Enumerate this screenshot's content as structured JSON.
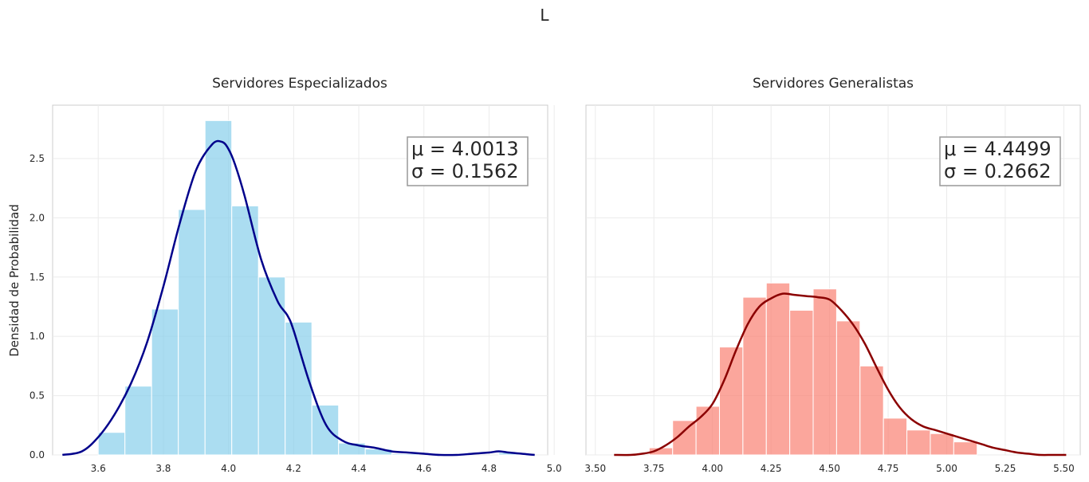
{
  "figure": {
    "suptitle": "L"
  },
  "ylabel": "Densidad de Probabilidad",
  "chart_data": [
    {
      "type": "bar",
      "title": "Servidores Especializados",
      "xlabel": "",
      "ylabel": "Densidad de Probabilidad",
      "xlim": [
        3.46,
        4.98
      ],
      "ylim": [
        0,
        2.95
      ],
      "xticks": [
        "3.6",
        "3.8",
        "4.0",
        "4.2",
        "4.4",
        "4.6",
        "4.8",
        "5.0"
      ],
      "yticks": [
        "0.0",
        "0.5",
        "1.0",
        "1.5",
        "2.0",
        "2.5"
      ],
      "grid": true,
      "colors": {
        "bars": "#87ceeb",
        "kde": "#00008b"
      },
      "stats": {
        "mu": "μ = 4.0013",
        "sigma": "σ = 0.1562"
      },
      "bins": [
        {
          "x0": 3.6,
          "x1": 3.682,
          "value": 0.19
        },
        {
          "x0": 3.682,
          "x1": 3.764,
          "value": 0.58
        },
        {
          "x0": 3.764,
          "x1": 3.846,
          "value": 1.23
        },
        {
          "x0": 3.846,
          "x1": 3.928,
          "value": 2.07
        },
        {
          "x0": 3.928,
          "x1": 4.01,
          "value": 2.82
        },
        {
          "x0": 4.01,
          "x1": 4.092,
          "value": 2.1
        },
        {
          "x0": 4.092,
          "x1": 4.174,
          "value": 1.5
        },
        {
          "x0": 4.174,
          "x1": 4.256,
          "value": 1.12
        },
        {
          "x0": 4.256,
          "x1": 4.338,
          "value": 0.42
        },
        {
          "x0": 4.338,
          "x1": 4.42,
          "value": 0.1
        },
        {
          "x0": 4.42,
          "x1": 4.502,
          "value": 0.05
        },
        {
          "x0": 4.502,
          "x1": 4.584,
          "value": 0.01
        },
        {
          "x0": 4.584,
          "x1": 4.666,
          "value": 0.0
        },
        {
          "x0": 4.666,
          "x1": 4.748,
          "value": 0.0
        },
        {
          "x0": 4.748,
          "x1": 4.83,
          "value": 0.0
        },
        {
          "x0": 4.83,
          "x1": 4.912,
          "value": 0.02
        }
      ],
      "kde": {
        "x": [
          3.49,
          3.55,
          3.6,
          3.65,
          3.7,
          3.75,
          3.8,
          3.85,
          3.9,
          3.95,
          3.98,
          4.0,
          4.02,
          4.05,
          4.1,
          4.15,
          4.18,
          4.2,
          4.25,
          4.3,
          4.35,
          4.4,
          4.45,
          4.5,
          4.55,
          4.6,
          4.65,
          4.7,
          4.75,
          4.8,
          4.83,
          4.86,
          4.9,
          4.94
        ],
        "y": [
          0.0,
          0.03,
          0.15,
          0.34,
          0.6,
          0.95,
          1.42,
          1.95,
          2.4,
          2.62,
          2.64,
          2.58,
          2.45,
          2.18,
          1.65,
          1.3,
          1.18,
          1.05,
          0.6,
          0.25,
          0.12,
          0.08,
          0.06,
          0.03,
          0.02,
          0.01,
          0.0,
          0.0,
          0.01,
          0.02,
          0.03,
          0.02,
          0.01,
          0.0
        ]
      }
    },
    {
      "type": "bar",
      "title": "Servidores Generalistas",
      "xlabel": "",
      "ylabel": "",
      "xlim": [
        3.46,
        5.57
      ],
      "ylim": [
        0,
        2.95
      ],
      "xticks": [
        "3.50",
        "3.75",
        "4.00",
        "4.25",
        "4.50",
        "4.75",
        "5.00",
        "5.25",
        "5.50"
      ],
      "yticks": [],
      "grid": true,
      "colors": {
        "bars": "#fa8072",
        "kde": "#8b0000"
      },
      "stats": {
        "mu": "μ = 4.4499",
        "sigma": "σ = 0.2662"
      },
      "bins": [
        {
          "x0": 3.73,
          "x1": 3.83,
          "value": 0.06
        },
        {
          "x0": 3.83,
          "x1": 3.93,
          "value": 0.29
        },
        {
          "x0": 3.93,
          "x1": 4.03,
          "value": 0.41
        },
        {
          "x0": 4.03,
          "x1": 4.13,
          "value": 0.91
        },
        {
          "x0": 4.13,
          "x1": 4.23,
          "value": 1.33
        },
        {
          "x0": 4.23,
          "x1": 4.33,
          "value": 1.45
        },
        {
          "x0": 4.33,
          "x1": 4.43,
          "value": 1.22
        },
        {
          "x0": 4.43,
          "x1": 4.53,
          "value": 1.4
        },
        {
          "x0": 4.53,
          "x1": 4.63,
          "value": 1.13
        },
        {
          "x0": 4.63,
          "x1": 4.73,
          "value": 0.75
        },
        {
          "x0": 4.73,
          "x1": 4.83,
          "value": 0.31
        },
        {
          "x0": 4.83,
          "x1": 4.93,
          "value": 0.21
        },
        {
          "x0": 4.93,
          "x1": 5.03,
          "value": 0.18
        },
        {
          "x0": 5.03,
          "x1": 5.13,
          "value": 0.11
        }
      ],
      "kde": {
        "x": [
          3.58,
          3.65,
          3.7,
          3.75,
          3.8,
          3.85,
          3.9,
          3.95,
          4.0,
          4.05,
          4.1,
          4.15,
          4.2,
          4.25,
          4.3,
          4.35,
          4.4,
          4.45,
          4.5,
          4.55,
          4.6,
          4.65,
          4.7,
          4.75,
          4.8,
          4.85,
          4.9,
          4.95,
          5.0,
          5.05,
          5.1,
          5.15,
          5.2,
          5.25,
          5.3,
          5.35,
          5.4,
          5.45,
          5.51
        ],
        "y": [
          0.0,
          0.0,
          0.01,
          0.03,
          0.08,
          0.15,
          0.24,
          0.32,
          0.43,
          0.63,
          0.88,
          1.1,
          1.25,
          1.32,
          1.36,
          1.35,
          1.34,
          1.33,
          1.31,
          1.22,
          1.1,
          0.94,
          0.74,
          0.55,
          0.4,
          0.3,
          0.24,
          0.21,
          0.18,
          0.15,
          0.12,
          0.09,
          0.06,
          0.04,
          0.02,
          0.01,
          0.0,
          0.0,
          0.0
        ]
      }
    }
  ]
}
